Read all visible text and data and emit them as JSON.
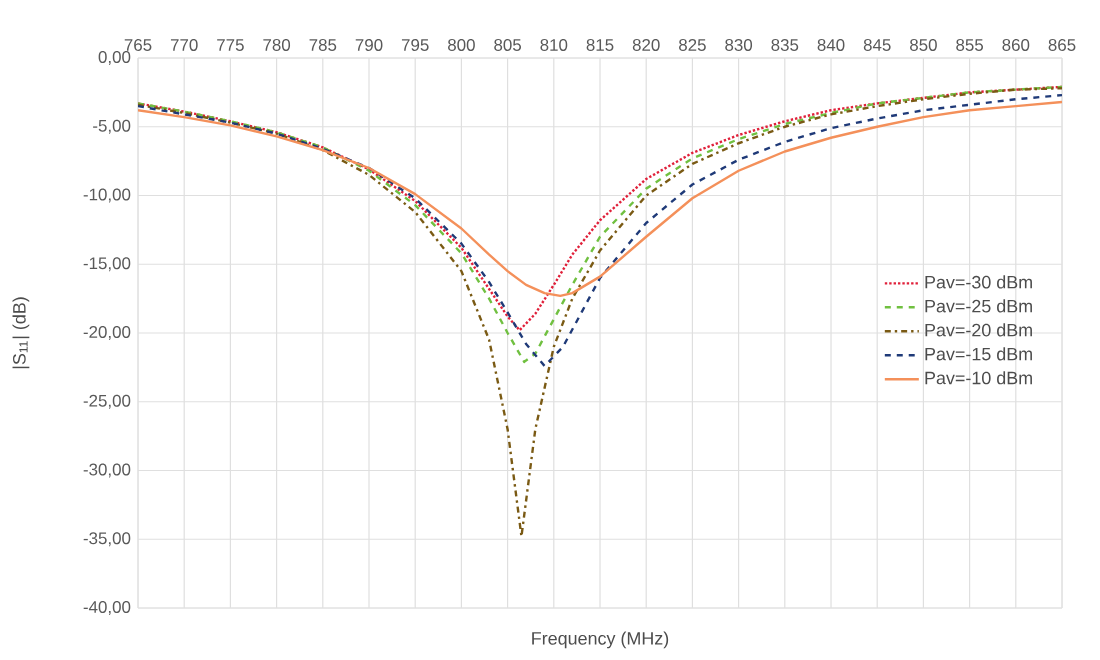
{
  "chart_data": {
    "type": "line",
    "xlabel": "Frequency (MHz)",
    "ylabel": "|S$_{11}$| (dB)",
    "xlim": [
      765,
      865
    ],
    "xticks": [
      765,
      770,
      775,
      780,
      785,
      790,
      795,
      800,
      805,
      810,
      815,
      820,
      825,
      830,
      835,
      840,
      845,
      850,
      855,
      860,
      865
    ],
    "ylim": [
      -40,
      0
    ],
    "yticks": [
      {
        "value": 0,
        "label": "0,00"
      },
      {
        "value": -5,
        "label": "-5,00"
      },
      {
        "value": -10,
        "label": "-10,00"
      },
      {
        "value": -15,
        "label": "-15,00"
      },
      {
        "value": -20,
        "label": "-20,00"
      },
      {
        "value": -25,
        "label": "-25,00"
      },
      {
        "value": -30,
        "label": "-30,00"
      },
      {
        "value": -35,
        "label": "-35,00"
      },
      {
        "value": -40,
        "label": "-40,00"
      }
    ],
    "grid": true,
    "legend": "right",
    "marker": "none",
    "series": [
      {
        "name": "Pav=-30 dBm",
        "color": "#e0203a",
        "line_style": "dotted",
        "x": [
          765,
          770,
          775,
          780,
          785,
          790,
          795,
          800,
          803,
          805,
          806.3,
          808,
          810,
          812,
          815,
          820,
          825,
          830,
          835,
          840,
          845,
          850,
          855,
          860,
          865
        ],
        "values": [
          -3.3,
          -3.9,
          -4.6,
          -5.4,
          -6.5,
          -8.1,
          -10.4,
          -13.8,
          -16.8,
          -18.8,
          -19.8,
          -18.6,
          -16.5,
          -14.3,
          -11.8,
          -8.8,
          -6.9,
          -5.6,
          -4.6,
          -3.8,
          -3.3,
          -2.9,
          -2.5,
          -2.3,
          -2.1
        ]
      },
      {
        "name": "Pav=-25 dBm",
        "color": "#70c040",
        "line_style": "dashed",
        "x": [
          765,
          770,
          775,
          780,
          785,
          790,
          795,
          800,
          803,
          805,
          806.8,
          808,
          810,
          812,
          815,
          820,
          825,
          830,
          835,
          840,
          845,
          850,
          855,
          860,
          865
        ],
        "values": [
          -3.3,
          -3.9,
          -4.6,
          -5.4,
          -6.5,
          -8.2,
          -10.7,
          -14.2,
          -17.5,
          -20.0,
          -22.1,
          -21.5,
          -19.0,
          -16.5,
          -13.0,
          -9.5,
          -7.3,
          -5.9,
          -4.8,
          -4.0,
          -3.3,
          -2.9,
          -2.5,
          -2.3,
          -2.1
        ]
      },
      {
        "name": "Pav=-20 dBm",
        "color": "#7a5a14",
        "line_style": "dashdot",
        "x": [
          765,
          770,
          775,
          780,
          785,
          790,
          795,
          800,
          803,
          805,
          806.5,
          808,
          810,
          812,
          815,
          820,
          825,
          830,
          835,
          840,
          845,
          850,
          855,
          860,
          865
        ],
        "values": [
          -3.4,
          -4.0,
          -4.7,
          -5.5,
          -6.7,
          -8.5,
          -11.2,
          -15.5,
          -20.5,
          -27.0,
          -34.8,
          -27.0,
          -21.0,
          -17.5,
          -14.0,
          -10.0,
          -7.7,
          -6.2,
          -5.0,
          -4.1,
          -3.5,
          -3.0,
          -2.6,
          -2.3,
          -2.2
        ]
      },
      {
        "name": "Pav=-15 dBm",
        "color": "#1f3a78",
        "line_style": "dashed",
        "x": [
          765,
          770,
          775,
          780,
          785,
          790,
          795,
          800,
          803,
          805,
          807,
          809,
          811,
          813,
          815,
          820,
          825,
          830,
          835,
          840,
          845,
          850,
          855,
          860,
          865
        ],
        "values": [
          -3.5,
          -4.1,
          -4.7,
          -5.5,
          -6.6,
          -8.0,
          -10.2,
          -13.5,
          -16.3,
          -18.5,
          -20.8,
          -22.4,
          -21.0,
          -18.5,
          -16.0,
          -12.0,
          -9.2,
          -7.4,
          -6.1,
          -5.1,
          -4.4,
          -3.8,
          -3.4,
          -3.0,
          -2.7
        ]
      },
      {
        "name": "Pav=-10 dBm",
        "color": "#f4905a",
        "line_style": "solid",
        "x": [
          765,
          770,
          775,
          780,
          785,
          790,
          795,
          800,
          803,
          805,
          807,
          809,
          810.7,
          812,
          815,
          820,
          825,
          830,
          835,
          840,
          845,
          850,
          855,
          860,
          865
        ],
        "values": [
          -3.8,
          -4.3,
          -4.9,
          -5.7,
          -6.7,
          -8.0,
          -9.9,
          -12.4,
          -14.3,
          -15.5,
          -16.5,
          -17.1,
          -17.3,
          -17.1,
          -15.9,
          -13.0,
          -10.2,
          -8.2,
          -6.8,
          -5.8,
          -5.0,
          -4.3,
          -3.8,
          -3.5,
          -3.2
        ]
      }
    ]
  }
}
